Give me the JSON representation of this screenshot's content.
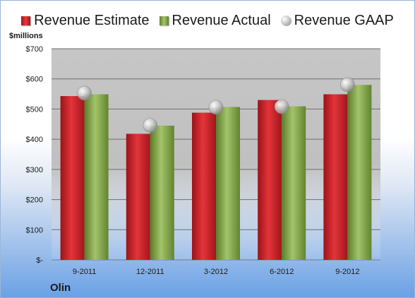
{
  "chart_data": {
    "type": "bar",
    "title": "",
    "ylabel": "$millions",
    "xlabel": "",
    "company": "Olin",
    "categories": [
      "9-2011",
      "12-2011",
      "3-2012",
      "6-2012",
      "9-2012"
    ],
    "series": [
      {
        "name": "Revenue Estimate",
        "kind": "bar",
        "color": "#d7262b",
        "values": [
          543,
          418,
          488,
          530,
          549
        ]
      },
      {
        "name": "Revenue Actual",
        "kind": "bar",
        "color": "#8eaf57",
        "values": [
          549,
          445,
          507,
          509,
          580
        ]
      },
      {
        "name": "Revenue GAAP",
        "kind": "marker",
        "color": "#b9b9b9",
        "values": [
          553,
          446,
          506,
          508,
          581
        ]
      }
    ],
    "ylim": [
      0,
      700
    ],
    "yticks": [
      0,
      100,
      200,
      300,
      400,
      500,
      600,
      700
    ],
    "ytick_labels": [
      "$-",
      "$100",
      "$200",
      "$300",
      "$400",
      "$500",
      "$600",
      "$700"
    ],
    "grid": true,
    "legend": "top"
  }
}
